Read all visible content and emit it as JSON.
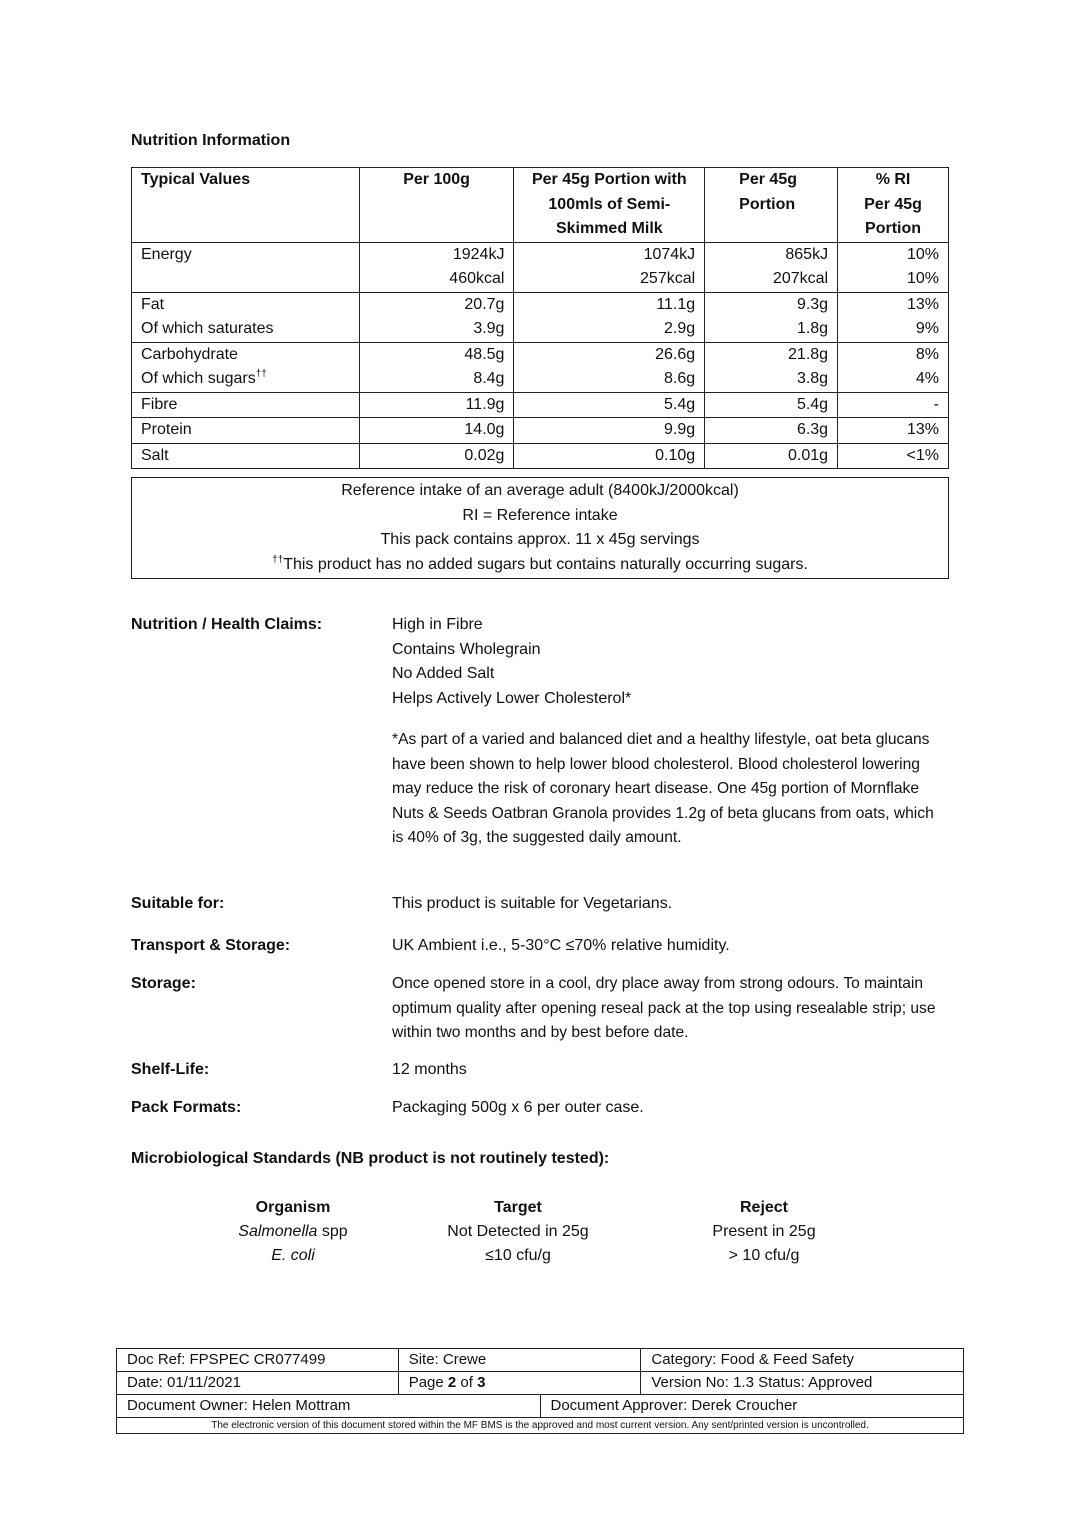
{
  "title": "Nutrition Information",
  "nutrition_table": {
    "headers": [
      "Typical Values",
      "Per 100g",
      [
        "Per 45g Portion with",
        "100mls of Semi-",
        "Skimmed Milk"
      ],
      [
        "Per 45g",
        "Portion"
      ],
      [
        "% RI",
        "Per 45g",
        "Portion"
      ]
    ],
    "rows": [
      {
        "labels": [
          "Energy",
          ""
        ],
        "per100": [
          "1924kJ",
          "460kcal"
        ],
        "withMilk": [
          "1074kJ",
          "257kcal"
        ],
        "per45": [
          "865kJ",
          "207kcal"
        ],
        "ri": [
          "10%",
          "10%"
        ]
      },
      {
        "labels": [
          "Fat",
          "Of which saturates"
        ],
        "per100": [
          "20.7g",
          "3.9g"
        ],
        "withMilk": [
          "11.1g",
          "2.9g"
        ],
        "per45": [
          "9.3g",
          "1.8g"
        ],
        "ri": [
          "13%",
          "9%"
        ]
      },
      {
        "labels": [
          "Carbohydrate",
          "Of which sugars"
        ],
        "per100": [
          "48.5g",
          "8.4g"
        ],
        "withMilk": [
          "26.6g",
          "8.6g"
        ],
        "per45": [
          "21.8g",
          "3.8g"
        ],
        "ri": [
          "8%",
          "4%"
        ]
      },
      {
        "labels": [
          "Fibre"
        ],
        "per100": [
          "11.9g"
        ],
        "withMilk": [
          "5.4g"
        ],
        "per45": [
          "5.4g"
        ],
        "ri": [
          "-"
        ]
      },
      {
        "labels": [
          "Protein"
        ],
        "per100": [
          "14.0g"
        ],
        "withMilk": [
          "9.9g"
        ],
        "per45": [
          "6.3g"
        ],
        "ri": [
          "13%"
        ]
      },
      {
        "labels": [
          "Salt"
        ],
        "per100": [
          "0.02g"
        ],
        "withMilk": [
          "0.10g"
        ],
        "per45": [
          "0.01g"
        ],
        "ri": [
          "<1%"
        ]
      }
    ],
    "dagger": "††"
  },
  "reference": {
    "line1": "Reference intake of an average adult (8400kJ/2000kcal)",
    "line2": "RI = Reference intake",
    "line3": "This pack contains approx. 11 x 45g servings",
    "line4": "This product has no added sugars but contains naturally occurring sugars."
  },
  "claims": {
    "label": "Nutrition / Health Claims:",
    "items": [
      "High in Fibre",
      "Contains Wholegrain",
      "No Added Salt",
      "Helps Actively Lower Cholesterol*"
    ],
    "note": "*As part of a varied and balanced diet and a healthy lifestyle, oat beta glucans have been shown to help lower blood cholesterol.  Blood cholesterol lowering may reduce the risk of coronary heart disease.  One 45g portion of Mornflake Nuts & Seeds Oatbran Granola provides 1.2g of beta glucans from oats, which is 40% of 3g, the suggested daily amount."
  },
  "suitable": {
    "label": "Suitable for:",
    "value": "This product is suitable for Vegetarians."
  },
  "transport": {
    "label": "Transport & Storage:",
    "value": "UK Ambient i.e., 5-30°C ≤70% relative humidity."
  },
  "storage": {
    "label": "Storage:",
    "value": "Once opened store in a cool, dry place away from strong odours.  To maintain optimum quality after opening reseal pack at the top using resealable strip; use within two months and by best before date."
  },
  "shelf": {
    "label": "Shelf-Life:",
    "value": "12 months"
  },
  "pack": {
    "label": "Pack Formats:",
    "value": "Packaging 500g x 6 per outer case."
  },
  "micro": {
    "heading": "Microbiological Standards (NB product is not routinely tested):",
    "headers": [
      "Organism",
      "Target",
      "Reject"
    ],
    "rows": [
      {
        "organism": "Salmonella",
        "organism_suffix": " spp",
        "target": "Not Detected in 25g",
        "reject": "Present in 25g"
      },
      {
        "organism": "E. coli",
        "organism_suffix": "",
        "target": "≤10 cfu/g",
        "reject": "> 10 cfu/g"
      }
    ]
  },
  "footer": {
    "doc_ref": "Doc Ref: FPSPEC CR077499",
    "site": "Site: Crewe",
    "category": "Category: Food & Feed Safety",
    "date": "Date: 01/11/2021",
    "page_prefix": "Page ",
    "page_num": "2",
    "page_of": " of ",
    "page_total": "3",
    "version": "Version No: 1.3  Status: Approved",
    "owner": "Document Owner: Helen Mottram",
    "approver": "Document Approver: Derek Croucher",
    "note": "The electronic version of this document stored within the MF BMS is the approved and most current version. Any sent/printed version is uncontrolled."
  }
}
